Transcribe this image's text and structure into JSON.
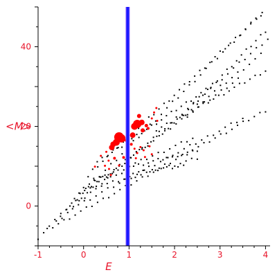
{
  "chart_data": {
    "type": "scatter",
    "title": "",
    "xlabel": "E",
    "ylabel": "<M>",
    "xlim": [
      -1,
      4.1
    ],
    "ylim": [
      -10,
      50
    ],
    "xticks": [
      -1,
      0,
      1,
      2,
      3,
      4
    ],
    "yticks": [
      0,
      20,
      40
    ],
    "xtick_labels": [
      "-1",
      "0",
      "1",
      "2",
      "3",
      "4"
    ],
    "ytick_labels": [
      "0",
      "20",
      "40"
    ],
    "grid": false,
    "legend": "none",
    "colors": {
      "axis_text": "#e8142a",
      "points": "#000000",
      "highlight": "#ff0000",
      "vline_main": "#1a1aff",
      "vline_edge": "#9a6bff"
    },
    "vertical_line": {
      "x": 0.97
    },
    "point_bands": [
      {
        "x0": -1.0,
        "y0": -8.0,
        "x1": 4.05,
        "y1": 50.0,
        "n": 42
      },
      {
        "x0": -0.8,
        "y0": -6.0,
        "x1": 4.0,
        "y1": 24.0,
        "n": 40
      },
      {
        "x0": -0.6,
        "y0": -4.0,
        "x1": 4.05,
        "y1": 42.0,
        "n": 38
      },
      {
        "x0": -0.5,
        "y0": -2.0,
        "x1": 3.5,
        "y1": 22.0,
        "n": 32
      },
      {
        "x0": -0.3,
        "y0": 0.0,
        "x1": 3.9,
        "y1": 38.0,
        "n": 34
      },
      {
        "x0": -0.2,
        "y0": 2.0,
        "x1": 3.4,
        "y1": 32.0,
        "n": 30
      },
      {
        "x0": -0.1,
        "y0": 3.5,
        "x1": 2.5,
        "y1": 12.0,
        "n": 22
      },
      {
        "x0": 0.0,
        "y0": 5.0,
        "x1": 2.4,
        "y1": 17.0,
        "n": 20
      },
      {
        "x0": 0.1,
        "y0": 7.0,
        "x1": 2.2,
        "y1": 10.0,
        "n": 18
      },
      {
        "x0": 0.2,
        "y0": 9.0,
        "x1": 3.9,
        "y1": 48.0,
        "n": 34
      },
      {
        "x0": 0.3,
        "y0": 11.0,
        "x1": 2.8,
        "y1": 30.0,
        "n": 24
      },
      {
        "x0": 1.1,
        "y0": 10.0,
        "x1": 2.5,
        "y1": 14.0,
        "n": 14
      },
      {
        "x0": 1.6,
        "y0": 19.0,
        "x1": 4.0,
        "y1": 34.0,
        "n": 22
      },
      {
        "x0": 2.2,
        "y0": 23.0,
        "x1": 4.0,
        "y1": 44.0,
        "n": 18
      }
    ],
    "highlight_points": [
      {
        "x": 0.78,
        "y": 17.3,
        "s": 7
      },
      {
        "x": 0.83,
        "y": 17.0,
        "s": 6
      },
      {
        "x": 0.72,
        "y": 16.0,
        "s": 5
      },
      {
        "x": 0.65,
        "y": 15.5,
        "s": 4
      },
      {
        "x": 0.62,
        "y": 14.7,
        "s": 4
      },
      {
        "x": 1.18,
        "y": 20.6,
        "s": 6
      },
      {
        "x": 1.12,
        "y": 20.0,
        "s": 5
      },
      {
        "x": 1.28,
        "y": 21.0,
        "s": 4
      },
      {
        "x": 1.08,
        "y": 17.8,
        "s": 4
      },
      {
        "x": 1.22,
        "y": 22.6,
        "s": 3
      },
      {
        "x": 1.3,
        "y": 19.0,
        "s": 3
      },
      {
        "x": 1.38,
        "y": 20.2,
        "s": 2.5
      },
      {
        "x": 1.42,
        "y": 19.5,
        "s": 2
      },
      {
        "x": 1.5,
        "y": 22.0,
        "s": 1.5
      },
      {
        "x": 1.55,
        "y": 23.5,
        "s": 1.5
      },
      {
        "x": 1.62,
        "y": 21.4,
        "s": 1.5
      },
      {
        "x": 1.6,
        "y": 24.6,
        "s": 1.5
      },
      {
        "x": 0.93,
        "y": 16.5,
        "s": 2
      },
      {
        "x": 0.88,
        "y": 12.2,
        "s": 2
      },
      {
        "x": 0.68,
        "y": 12.0,
        "s": 2
      },
      {
        "x": 0.55,
        "y": 11.4,
        "s": 1.5
      },
      {
        "x": 0.47,
        "y": 10.1,
        "s": 1.5
      },
      {
        "x": 0.5,
        "y": 13.6,
        "s": 1.5
      },
      {
        "x": 0.38,
        "y": 12.6,
        "s": 1.5
      },
      {
        "x": 0.25,
        "y": 9.9,
        "s": 1.5
      },
      {
        "x": 0.56,
        "y": 9.3,
        "s": 1.5
      },
      {
        "x": 0.6,
        "y": 7.8,
        "s": 1.5
      },
      {
        "x": 0.78,
        "y": 10.2,
        "s": 1.5
      },
      {
        "x": 1.05,
        "y": 15.5,
        "s": 2
      },
      {
        "x": 1.12,
        "y": 14.4,
        "s": 1.5
      },
      {
        "x": 1.18,
        "y": 13.3,
        "s": 1.5
      },
      {
        "x": 1.25,
        "y": 14.8,
        "s": 1.5
      },
      {
        "x": 1.32,
        "y": 14.0,
        "s": 1.5
      },
      {
        "x": 1.35,
        "y": 12.3,
        "s": 1.5
      },
      {
        "x": 1.45,
        "y": 15.0,
        "s": 1.5
      },
      {
        "x": 1.5,
        "y": 13.0,
        "s": 1.5
      },
      {
        "x": 1.15,
        "y": 12.0,
        "s": 1.5
      },
      {
        "x": 0.98,
        "y": 13.5,
        "s": 1.5
      }
    ]
  }
}
